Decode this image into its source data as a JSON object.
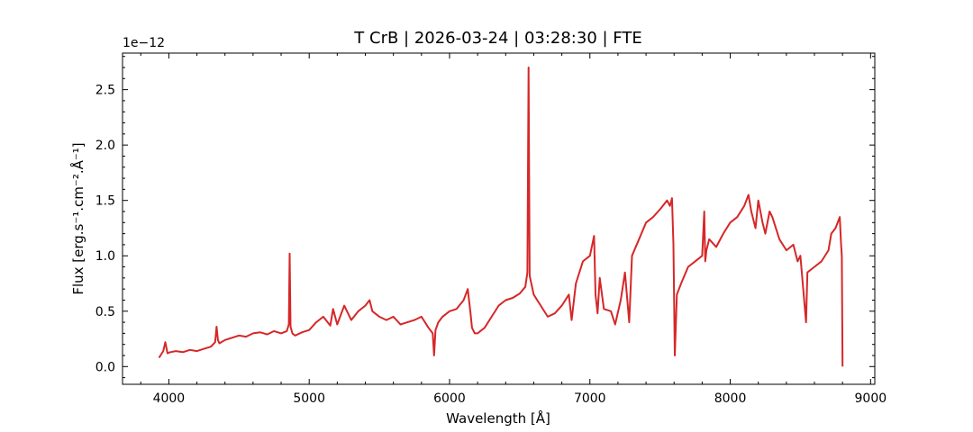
{
  "chart_data": {
    "type": "line",
    "title": "T CrB | 2026-03-24 | 03:28:30 | FTE",
    "xlabel": "Wavelength [Å]",
    "ylabel": "Flux [erg.s⁻¹.cm⁻².Å⁻¹]",
    "y_offset_label": "1e−12",
    "y_scale_factor": 1e-12,
    "xlim": [
      3670,
      9030
    ],
    "ylim": [
      -0.16,
      2.83
    ],
    "x_ticks": [
      4000,
      5000,
      6000,
      7000,
      8000,
      9000
    ],
    "x_tick_labels": [
      "4000",
      "5000",
      "6000",
      "7000",
      "8000",
      "9000"
    ],
    "y_ticks": [
      0.0,
      0.5,
      1.0,
      1.5,
      2.0,
      2.5
    ],
    "y_tick_labels": [
      "0.0",
      "0.5",
      "1.0",
      "1.5",
      "2.0",
      "2.5"
    ],
    "grid": false,
    "color": "#d62728",
    "series": [
      {
        "x": [
          3930,
          3960,
          3975,
          3990,
          4010,
          4050,
          4100,
          4150,
          4200,
          4250,
          4300,
          4330,
          4340,
          4350,
          4360,
          4400,
          4450,
          4500,
          4550,
          4600,
          4650,
          4700,
          4750,
          4800,
          4840,
          4855,
          4861,
          4867,
          4880,
          4900,
          4950,
          5000,
          5050,
          5100,
          5150,
          5170,
          5200,
          5250,
          5300,
          5350,
          5400,
          5430,
          5450,
          5500,
          5550,
          5600,
          5650,
          5700,
          5750,
          5800,
          5850,
          5880,
          5890,
          5900,
          5920,
          5950,
          6000,
          6050,
          6100,
          6130,
          6150,
          6160,
          6180,
          6200,
          6250,
          6300,
          6350,
          6400,
          6450,
          6500,
          6540,
          6555,
          6563,
          6571,
          6600,
          6650,
          6700,
          6750,
          6800,
          6850,
          6870,
          6900,
          6950,
          7000,
          7030,
          7040,
          7055,
          7070,
          7100,
          7150,
          7180,
          7220,
          7250,
          7280,
          7300,
          7350,
          7400,
          7450,
          7500,
          7550,
          7570,
          7585,
          7595,
          7605,
          7620,
          7650,
          7700,
          7750,
          7800,
          7815,
          7822,
          7830,
          7850,
          7900,
          7950,
          8000,
          8050,
          8100,
          8130,
          8150,
          8180,
          8200,
          8230,
          8250,
          8280,
          8300,
          8350,
          8400,
          8450,
          8480,
          8500,
          8540,
          8550,
          8600,
          8650,
          8700,
          8720,
          8750,
          8780,
          8790,
          8795,
          8800
        ],
        "values": [
          0.08,
          0.14,
          0.22,
          0.12,
          0.13,
          0.14,
          0.13,
          0.15,
          0.14,
          0.16,
          0.18,
          0.22,
          0.36,
          0.24,
          0.21,
          0.24,
          0.26,
          0.28,
          0.27,
          0.3,
          0.31,
          0.29,
          0.32,
          0.3,
          0.32,
          0.38,
          1.02,
          0.36,
          0.3,
          0.28,
          0.31,
          0.33,
          0.4,
          0.45,
          0.37,
          0.52,
          0.38,
          0.55,
          0.42,
          0.5,
          0.55,
          0.6,
          0.5,
          0.45,
          0.42,
          0.45,
          0.38,
          0.4,
          0.42,
          0.45,
          0.35,
          0.3,
          0.1,
          0.33,
          0.4,
          0.45,
          0.5,
          0.52,
          0.6,
          0.7,
          0.48,
          0.35,
          0.3,
          0.3,
          0.35,
          0.45,
          0.55,
          0.6,
          0.62,
          0.66,
          0.72,
          0.85,
          2.7,
          0.82,
          0.65,
          0.55,
          0.45,
          0.48,
          0.55,
          0.65,
          0.42,
          0.75,
          0.95,
          1.0,
          1.18,
          0.65,
          0.48,
          0.8,
          0.52,
          0.5,
          0.38,
          0.6,
          0.85,
          0.4,
          1.0,
          1.15,
          1.3,
          1.35,
          1.42,
          1.5,
          1.45,
          1.52,
          1.1,
          0.1,
          0.65,
          0.75,
          0.9,
          0.95,
          1.0,
          1.4,
          0.95,
          1.05,
          1.15,
          1.08,
          1.2,
          1.3,
          1.35,
          1.45,
          1.55,
          1.4,
          1.25,
          1.5,
          1.3,
          1.2,
          1.4,
          1.35,
          1.15,
          1.05,
          1.1,
          0.95,
          1.0,
          0.4,
          0.85,
          0.9,
          0.95,
          1.05,
          1.2,
          1.25,
          1.35,
          1.1,
          1.0,
          0.0
        ]
      }
    ]
  }
}
